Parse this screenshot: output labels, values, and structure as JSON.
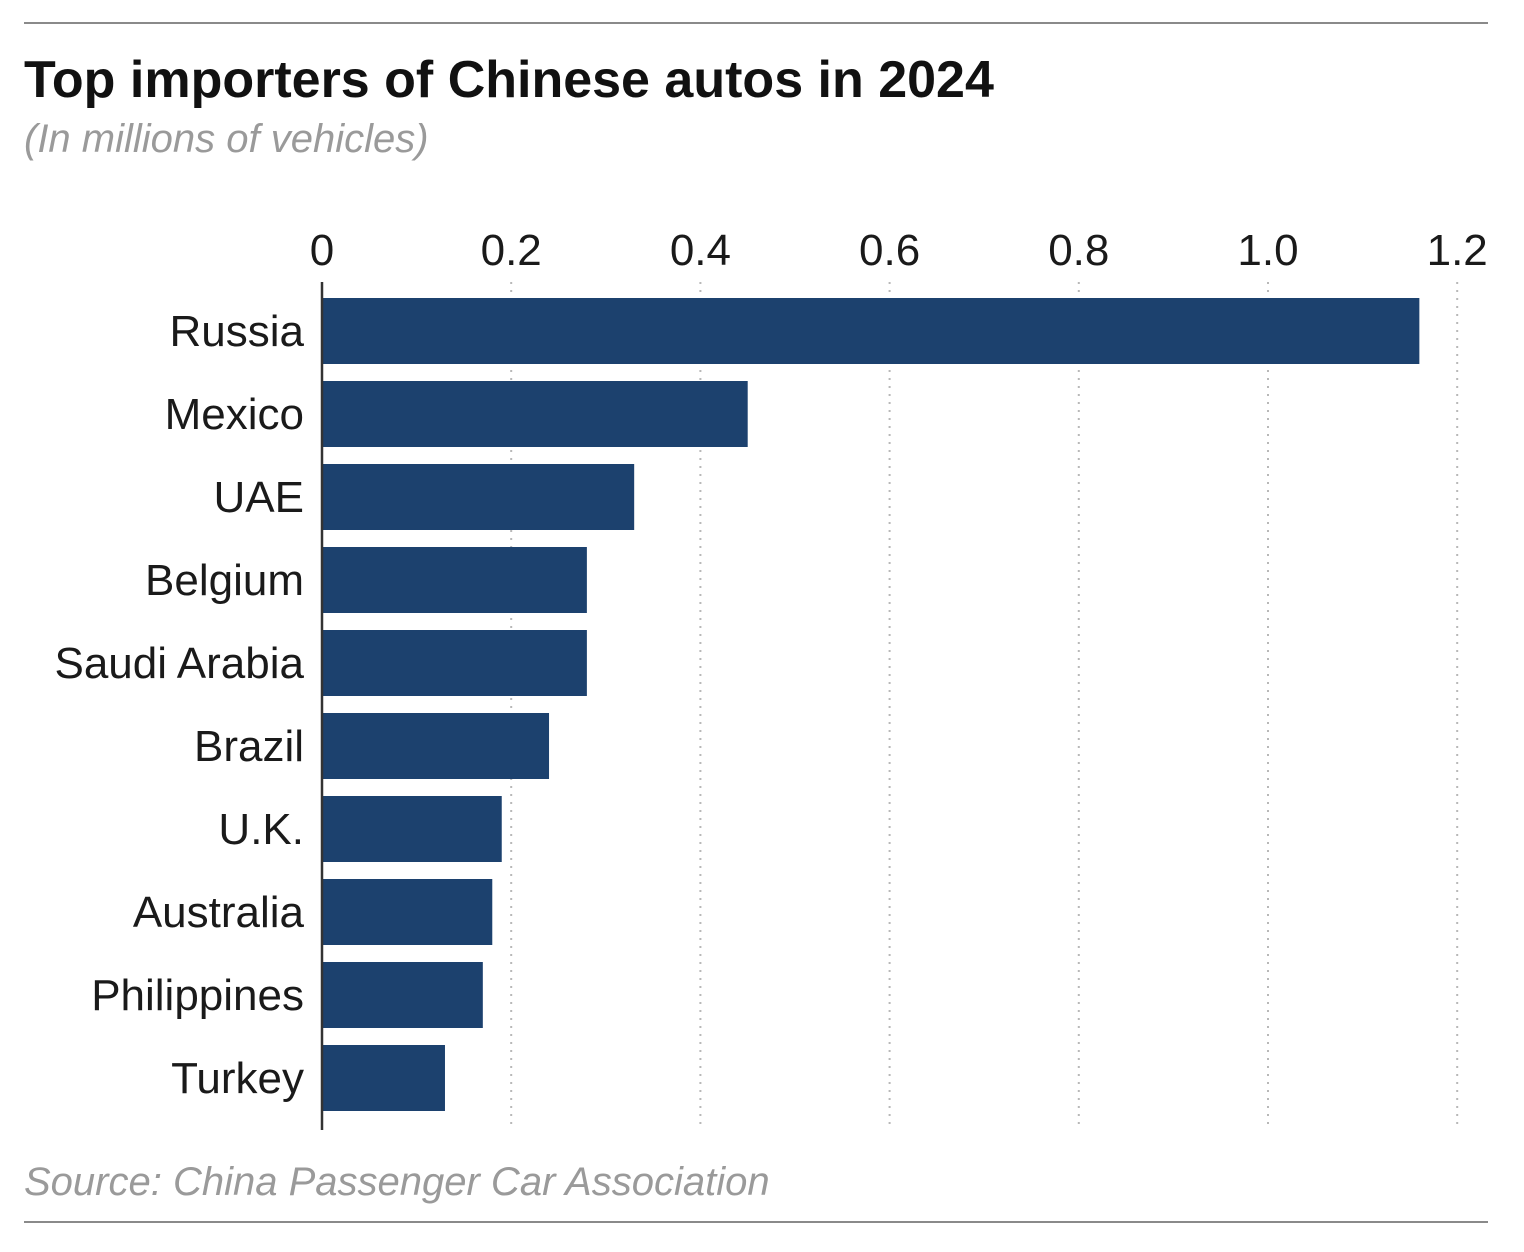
{
  "chart_data": {
    "type": "bar",
    "orientation": "horizontal",
    "title": "Top importers of Chinese autos in 2024",
    "subtitle": "(In millions of vehicles)",
    "source": "Source: China Passenger Car Association",
    "categories": [
      "Russia",
      "Mexico",
      "UAE",
      "Belgium",
      "Saudi Arabia",
      "Brazil",
      "U.K.",
      "Australia",
      "Philippines",
      "Turkey"
    ],
    "values": [
      1.16,
      0.45,
      0.33,
      0.28,
      0.28,
      0.24,
      0.19,
      0.18,
      0.17,
      0.13
    ],
    "xlim": [
      0,
      1.2
    ],
    "x_ticks": [
      0,
      0.2,
      0.4,
      0.6,
      0.8,
      1.0,
      1.2
    ],
    "x_tick_labels": [
      "0",
      "0.2",
      "0.4",
      "0.6",
      "0.8",
      "1.0",
      "1.2"
    ],
    "xlabel": "",
    "ylabel": "",
    "axis_position": "top",
    "grid": true,
    "legend": "none",
    "bar_color": "#1c416e"
  }
}
